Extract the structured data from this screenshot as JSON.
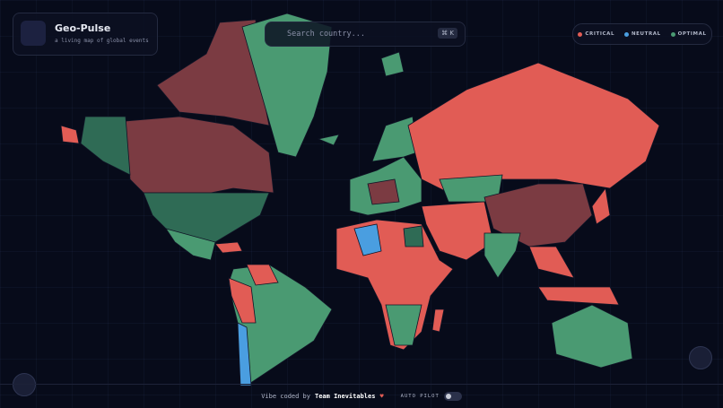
{
  "header": {
    "title": "Geo-Pulse",
    "subtitle": "a living map of global events"
  },
  "search": {
    "placeholder": "Search country...",
    "shortcut": "⌘ K"
  },
  "legend": [
    "CRITICAL",
    "NEUTRAL",
    "OPTIMAL"
  ],
  "footer": {
    "credit": "Vibe coded by",
    "team": "Team Inevitables",
    "autopilot": "AUTO PILOT"
  }
}
